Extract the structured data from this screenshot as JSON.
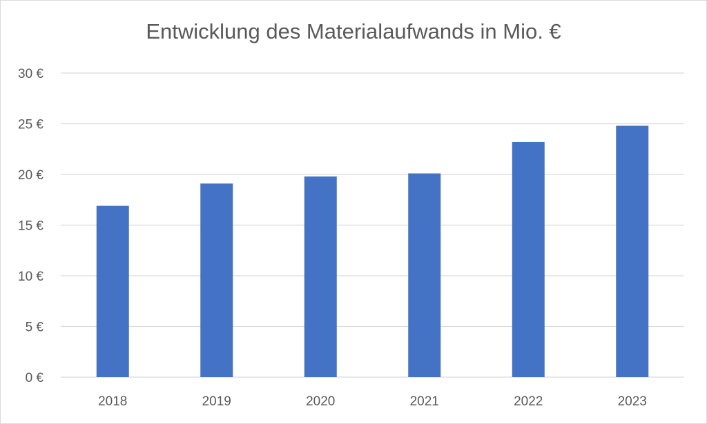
{
  "chart_data": {
    "type": "bar",
    "title": "Entwicklung des Materialaufwands in Mio. €",
    "xlabel": "",
    "ylabel": "",
    "categories": [
      "2018",
      "2019",
      "2020",
      "2021",
      "2022",
      "2023"
    ],
    "values": [
      16.9,
      19.1,
      19.8,
      20.1,
      23.2,
      24.8
    ],
    "ylim": [
      0,
      30
    ],
    "yticks": [
      0,
      5,
      10,
      15,
      20,
      25,
      30
    ],
    "ytick_labels": [
      "0 €",
      "5 €",
      "10 €",
      "15 €",
      "20 €",
      "25 €",
      "30 €"
    ],
    "grid": true,
    "legend": "none",
    "colors": {
      "bar": "#4472c4",
      "grid": "#d9d9d9",
      "text": "#595959"
    }
  }
}
